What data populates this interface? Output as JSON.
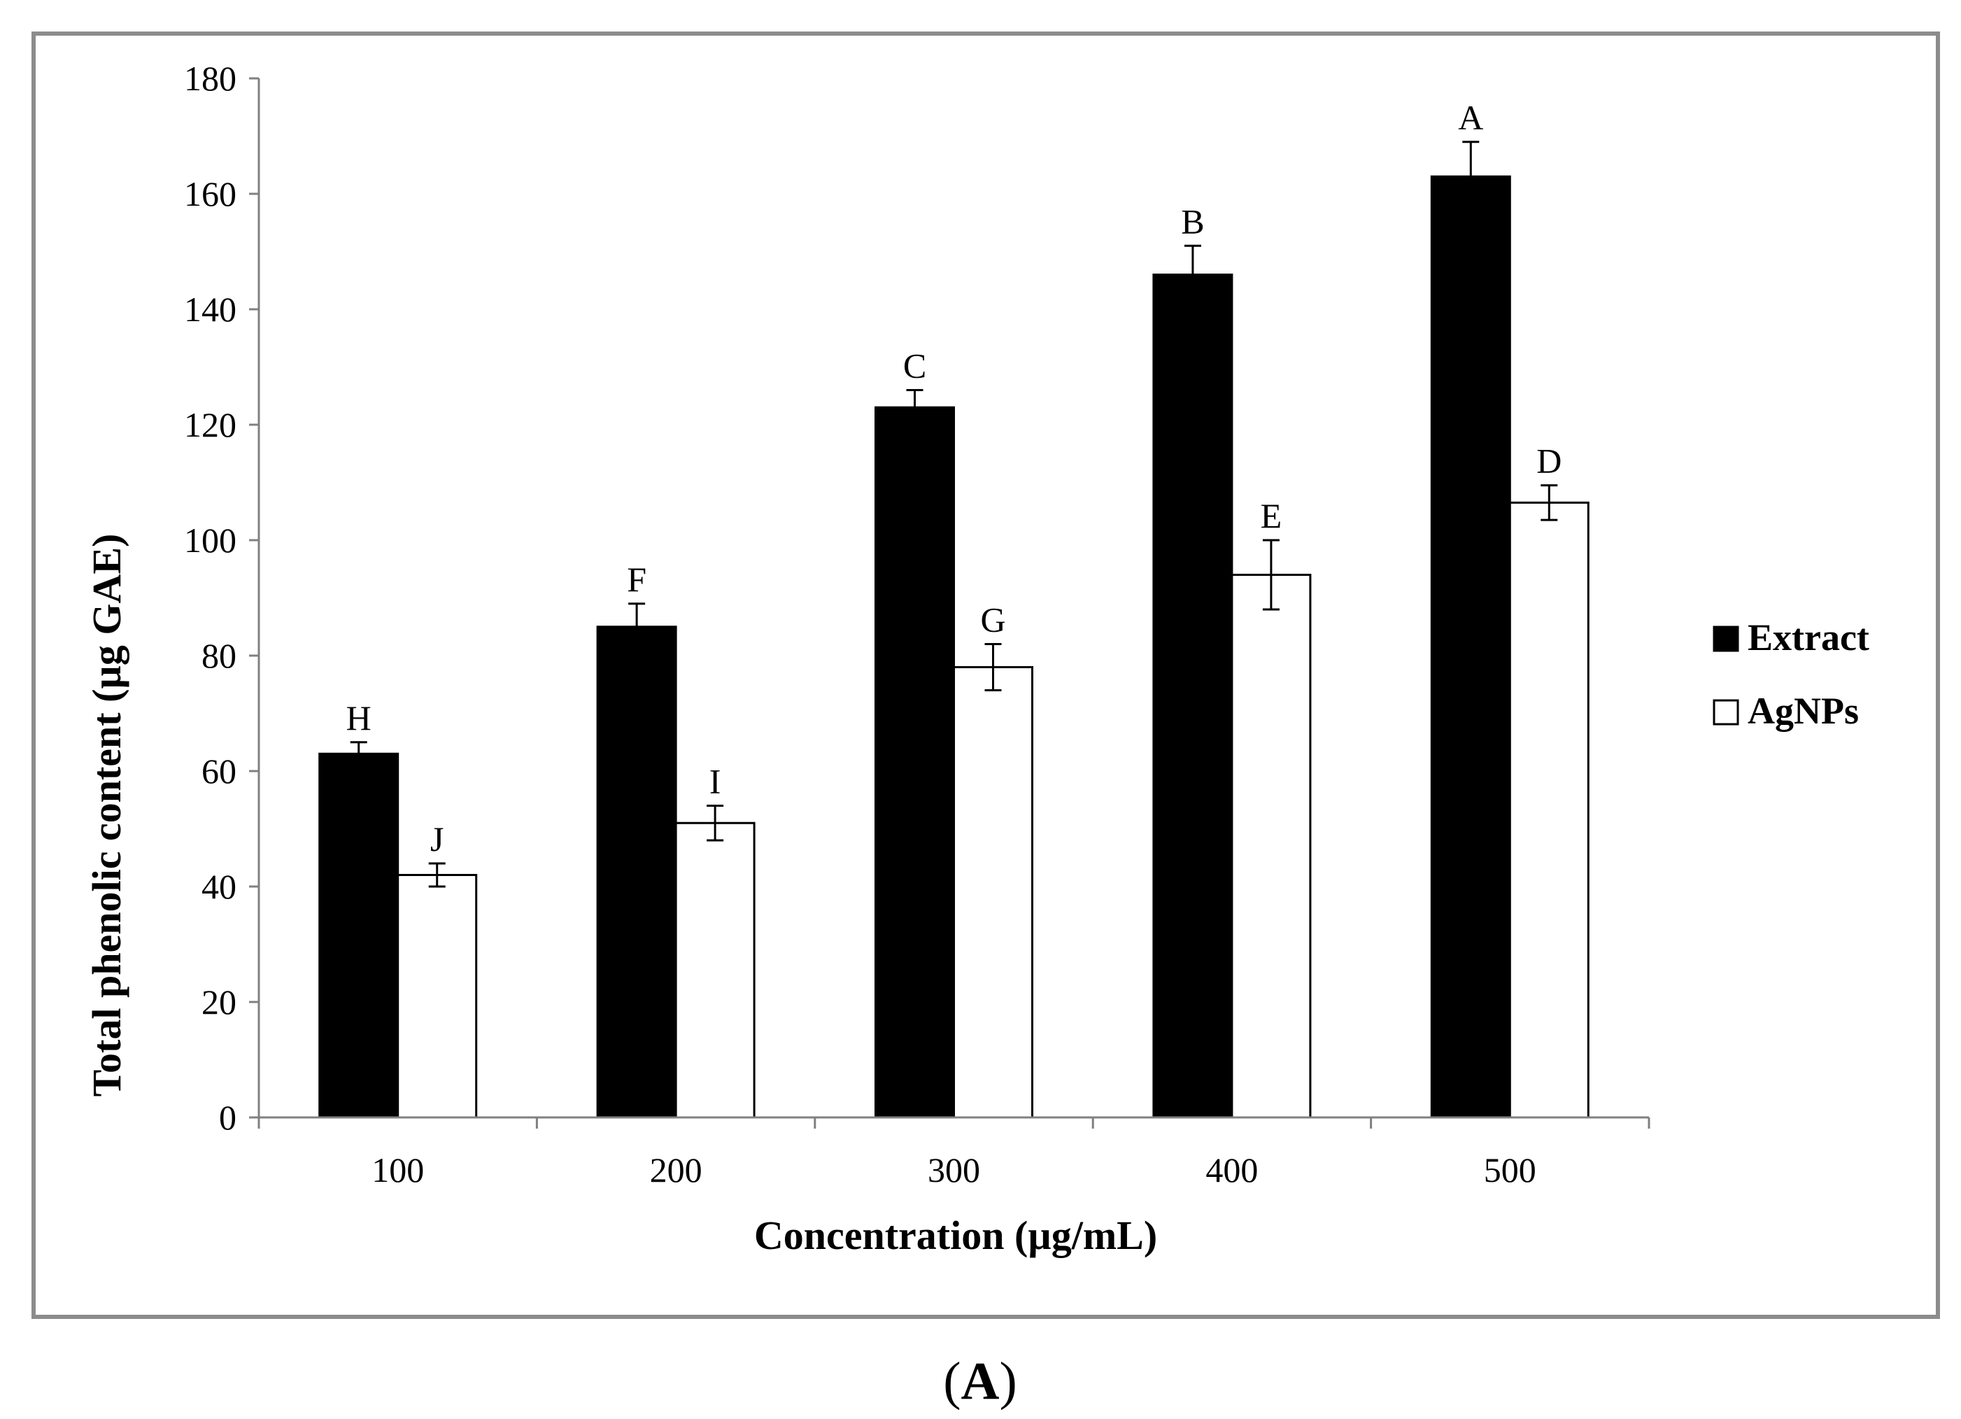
{
  "panel_label": "A",
  "chart_data": {
    "type": "bar",
    "title": "",
    "xlabel": "Concentration (µg/mL)",
    "ylabel": "Total phenolic content (µg GAE)",
    "categories": [
      "100",
      "200",
      "300",
      "400",
      "500"
    ],
    "ylim": [
      0,
      180
    ],
    "yticks": [
      0,
      20,
      40,
      60,
      80,
      100,
      120,
      140,
      160,
      180
    ],
    "grid": false,
    "legend_position": "right",
    "series": [
      {
        "name": "Extract",
        "color": "#000000",
        "values": [
          63,
          85,
          123,
          146,
          163
        ],
        "errors": [
          2,
          4,
          3,
          5,
          6
        ],
        "letters": [
          "H",
          "F",
          "C",
          "B",
          "A"
        ]
      },
      {
        "name": "AgNPs",
        "color": "#ffffff",
        "values": [
          42,
          51,
          78,
          94,
          106.5
        ],
        "errors": [
          2,
          3,
          4,
          6,
          3
        ],
        "letters": [
          "J",
          "I",
          "G",
          "E",
          "D"
        ]
      }
    ]
  }
}
